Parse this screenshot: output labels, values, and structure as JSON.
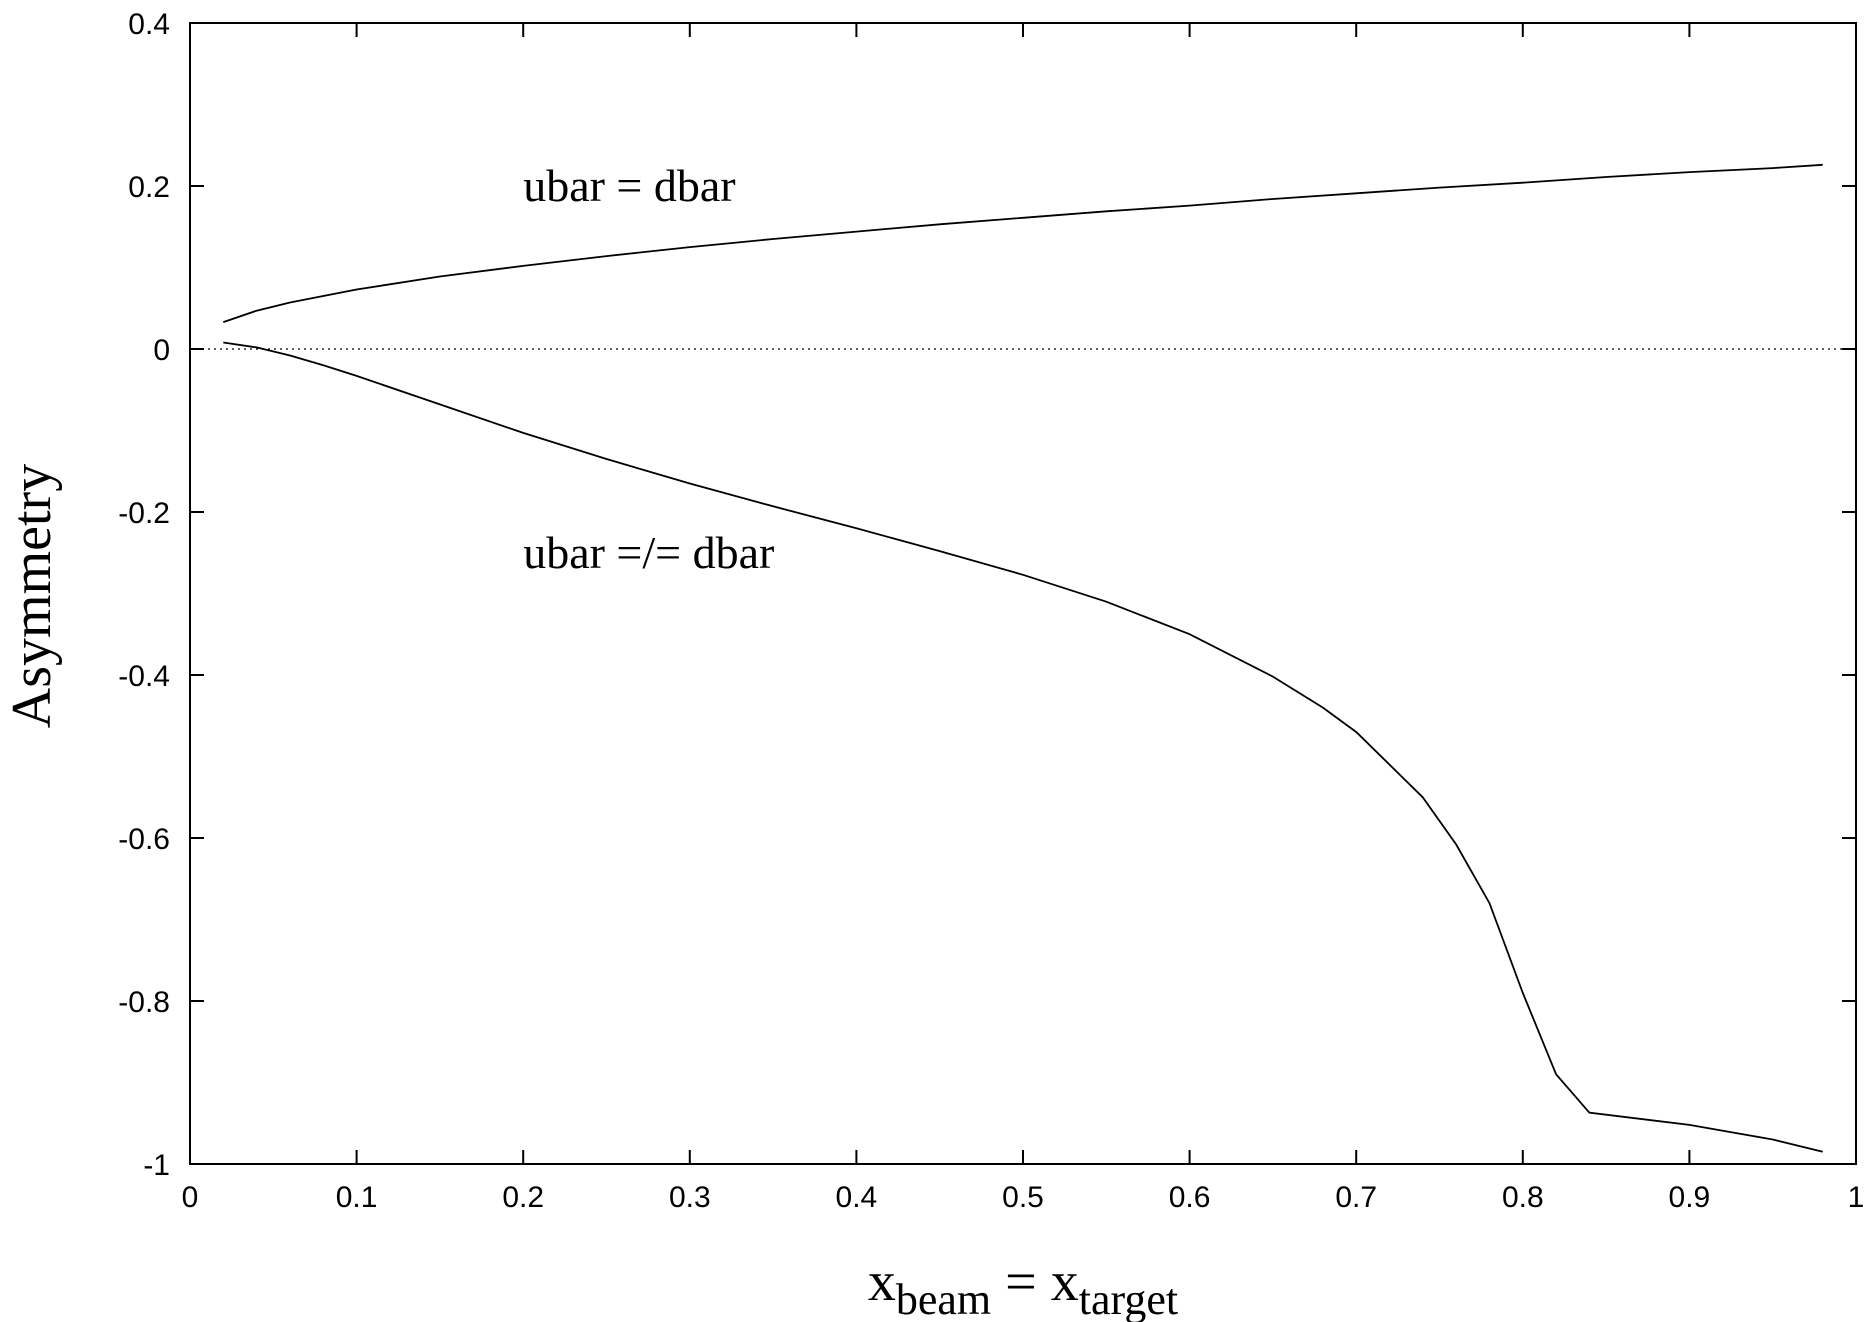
{
  "chart_data": {
    "type": "line",
    "title": "",
    "xlabel": {
      "main": "x",
      "sub": "beam",
      "eq": " = ",
      "main2": "x",
      "sub2": "target"
    },
    "ylabel": "Asymmetry",
    "xlim": [
      0,
      1
    ],
    "ylim": [
      -1,
      0.4
    ],
    "xticks": [
      0,
      0.1,
      0.2,
      0.3,
      0.4,
      0.5,
      0.6,
      0.7,
      0.8,
      0.9,
      1
    ],
    "xtick_labels": [
      "0",
      "0.1",
      "0.2",
      "0.3",
      "0.4",
      "0.5",
      "0.6",
      "0.7",
      "0.8",
      "0.9",
      "1"
    ],
    "yticks": [
      -1,
      -0.8,
      -0.6,
      -0.4,
      -0.2,
      0,
      0.2,
      0.4
    ],
    "ytick_labels": [
      "-1",
      "-0.8",
      "-0.6",
      "-0.4",
      "-0.2",
      "0",
      "0.2",
      "0.4"
    ],
    "zero_line": {
      "style": "dotted",
      "y": 0
    },
    "annotations": [
      {
        "text": "ubar = dbar",
        "x": 0.2,
        "y": 0.2
      },
      {
        "text": "ubar =/= dbar",
        "x": 0.2,
        "y": -0.25
      }
    ],
    "series": [
      {
        "x": [
          0.02,
          0.04,
          0.06,
          0.08,
          0.1,
          0.15,
          0.2,
          0.25,
          0.3,
          0.35,
          0.4,
          0.45,
          0.5,
          0.55,
          0.6,
          0.65,
          0.7,
          0.75,
          0.8,
          0.85,
          0.9,
          0.95,
          0.98
        ],
        "values": [
          0.033,
          0.047,
          0.057,
          0.065,
          0.073,
          0.089,
          0.102,
          0.114,
          0.125,
          0.135,
          0.144,
          0.153,
          0.161,
          0.169,
          0.176,
          0.184,
          0.191,
          0.198,
          0.204,
          0.211,
          0.217,
          0.222,
          0.226
        ],
        "color": "#000000"
      },
      {
        "x": [
          0.02,
          0.04,
          0.06,
          0.08,
          0.1,
          0.15,
          0.2,
          0.25,
          0.3,
          0.35,
          0.4,
          0.45,
          0.5,
          0.55,
          0.6,
          0.65,
          0.68,
          0.7,
          0.72,
          0.74,
          0.76,
          0.78,
          0.8,
          0.82,
          0.84,
          0.9,
          0.95,
          0.98
        ],
        "values": [
          0.008,
          0.002,
          -0.008,
          -0.02,
          -0.033,
          -0.068,
          -0.103,
          -0.135,
          -0.165,
          -0.193,
          -0.22,
          -0.248,
          -0.277,
          -0.31,
          -0.35,
          -0.402,
          -0.44,
          -0.47,
          -0.51,
          -0.55,
          -0.608,
          -0.68,
          -0.79,
          -0.89,
          -0.937,
          -0.952,
          -0.97,
          -0.985
        ],
        "color": "#000000"
      }
    ]
  }
}
